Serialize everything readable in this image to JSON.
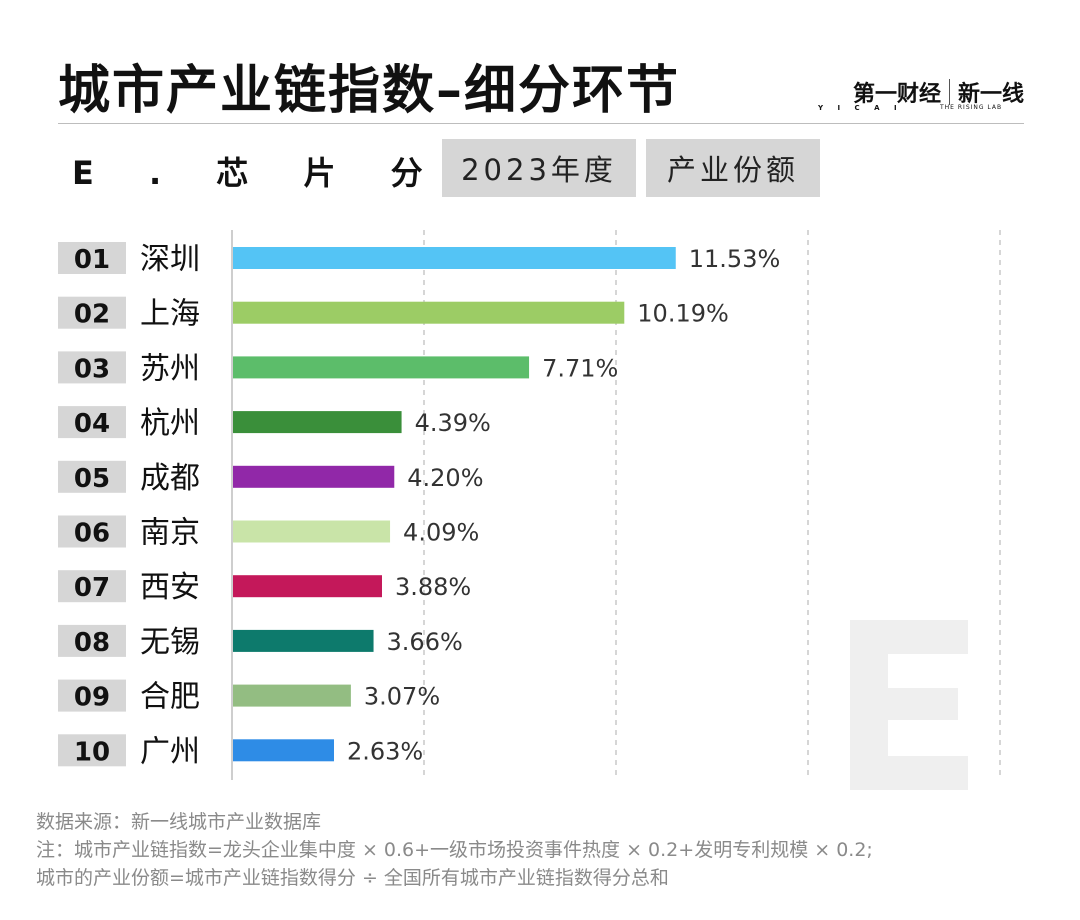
{
  "header": {
    "title": "城市产业链指数–细分环节",
    "brand_left": "第一财经",
    "brand_left_sub": "Y I C A I",
    "brand_right": "新一线",
    "brand_right_sub": "THE RISING LAB"
  },
  "subheader": {
    "section": "E . 芯 片 分 销",
    "year_chip": "2023年度",
    "metric_chip": "产业份额"
  },
  "watermark_letter": "E",
  "chart_data": {
    "type": "bar",
    "orientation": "horizontal",
    "ranks": [
      "01",
      "02",
      "03",
      "04",
      "05",
      "06",
      "07",
      "08",
      "09",
      "10"
    ],
    "categories": [
      "深圳",
      "上海",
      "苏州",
      "杭州",
      "成都",
      "南京",
      "西安",
      "无锡",
      "合肥",
      "广州"
    ],
    "values": [
      11.53,
      10.19,
      7.71,
      4.39,
      4.2,
      4.09,
      3.88,
      3.66,
      3.07,
      2.63
    ],
    "labels": [
      "11.53%",
      "10.19%",
      "7.71%",
      "4.39%",
      "4.20%",
      "4.09%",
      "3.88%",
      "3.66%",
      "3.07%",
      "2.63%"
    ],
    "colors": [
      "#54c4f5",
      "#9ccc65",
      "#5cbd6a",
      "#3a8f3a",
      "#9128a8",
      "#c9e4a8",
      "#c4185a",
      "#0d7a6c",
      "#93bd82",
      "#2e8ce6"
    ],
    "xlim": [
      0,
      20
    ],
    "grid": true
  },
  "footnotes": [
    "数据来源：新一线城市产业数据库",
    "注：城市产业链指数=龙头企业集中度 × 0.6+一级市场投资事件热度 × 0.2+发明专利规模 × 0.2;",
    "城市的产业份额=城市产业链指数得分 ÷ 全国所有城市产业链指数得分总和"
  ]
}
